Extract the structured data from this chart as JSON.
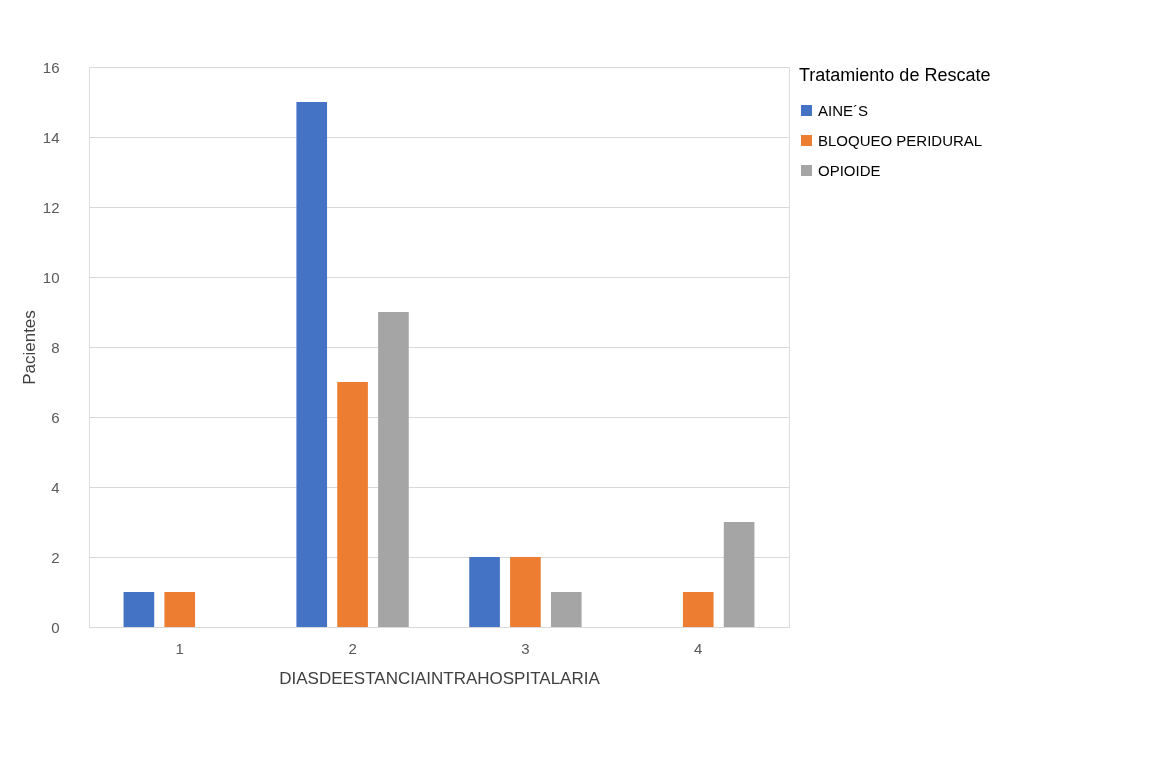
{
  "chart_data": {
    "type": "bar",
    "xlabel": "DIASDEESTANCIAINTRAHOSPITALARIA",
    "ylabel": "Pacientes",
    "legend_title": "Tratamiento de Rescate",
    "categories": [
      "1",
      "2",
      "3",
      "4"
    ],
    "series": [
      {
        "name": "AINE´S",
        "color": "#4472c4",
        "values": [
          1,
          15,
          2,
          null
        ]
      },
      {
        "name": "BLOQUEO PERIDURAL",
        "color": "#ed7d31",
        "values": [
          1,
          7,
          2,
          1
        ]
      },
      {
        "name": "OPIOIDE",
        "color": "#a5a5a5",
        "values": [
          null,
          9,
          1,
          3
        ]
      }
    ],
    "ylim": [
      0,
      16
    ],
    "yticks": [
      0,
      2,
      4,
      6,
      8,
      10,
      12,
      14,
      16
    ],
    "grid": "y",
    "legend": "right"
  }
}
